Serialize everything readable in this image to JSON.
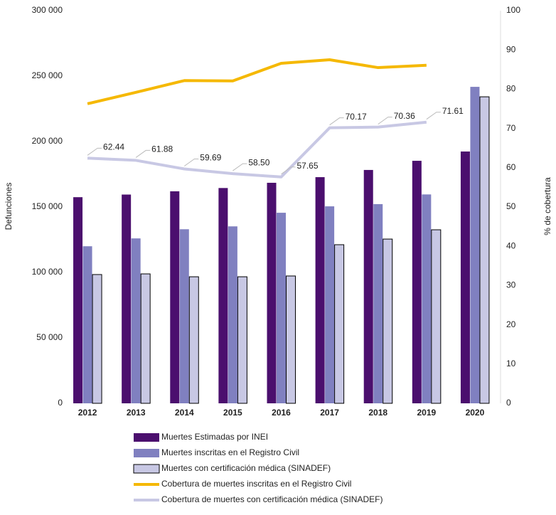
{
  "chart_data": {
    "type": "bar",
    "categories": [
      "2012",
      "2013",
      "2014",
      "2015",
      "2016",
      "2017",
      "2018",
      "2019",
      "2020"
    ],
    "ylabel": "Defunciones",
    "y2label": "% de cobertura",
    "ylim": [
      0,
      300000
    ],
    "yticks": [
      0,
      {
        "value": 50000,
        "label": "50 000"
      },
      {
        "value": 100000,
        "label": "100 000"
      },
      {
        "value": 150000,
        "label": "150 000"
      },
      {
        "value": 200000,
        "label": "200 000"
      },
      {
        "value": 250000,
        "label": "250 000"
      },
      {
        "value": 300000,
        "label": "300 000"
      }
    ],
    "y2lim": [
      0,
      100
    ],
    "y2ticks": [
      0,
      10,
      20,
      30,
      40,
      50,
      60,
      70,
      80,
      90,
      100
    ],
    "series": [
      {
        "name": "Muertes Estimadas por INEI",
        "type": "bar",
        "color": "#4b0f6e",
        "values": [
          157500,
          159500,
          162000,
          164500,
          168500,
          172800,
          178300,
          185300,
          192400
        ]
      },
      {
        "name": "Muertes inscritas en el Registro Civil",
        "type": "bar",
        "color": "#8080c0",
        "values": [
          120000,
          126000,
          133000,
          135200,
          145600,
          150500,
          152200,
          159600,
          241800
        ]
      },
      {
        "name": "Muertes con certificación médica (SINADEF)",
        "type": "bar",
        "color": "#c8c8e4",
        "border": "#000000",
        "values": [
          98400,
          98900,
          96700,
          96700,
          97300,
          121200,
          125500,
          132600,
          234200
        ]
      },
      {
        "name": "Cobertura de muertes inscritas en el Registro Civil",
        "type": "line",
        "axis": "y2",
        "color": "#f5b800",
        "values": [
          76.3,
          79.2,
          82.2,
          82.1,
          86.6,
          87.5,
          85.5,
          86.1,
          null
        ]
      },
      {
        "name": "Cobertura de muertes con certificación médica (SINADEF)",
        "type": "line",
        "axis": "y2",
        "color": "#c8c8e4",
        "values": [
          62.44,
          61.88,
          59.69,
          58.5,
          57.65,
          70.17,
          70.36,
          71.61,
          null
        ],
        "value_labels": [
          "62.44",
          "61.88",
          "59.69",
          "58.50",
          "57.65",
          "70.17",
          "70.36",
          "71.61",
          null
        ]
      }
    ]
  }
}
